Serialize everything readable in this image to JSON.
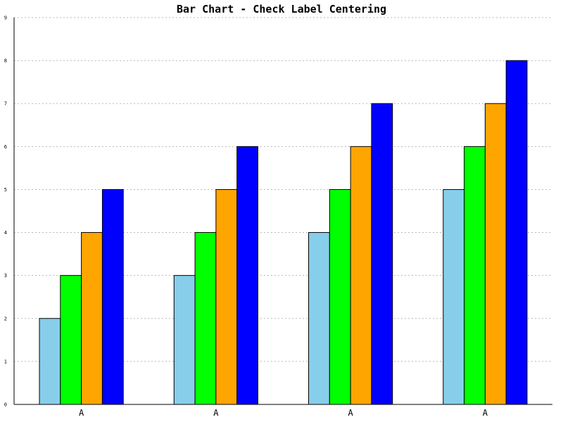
{
  "chart_data": {
    "type": "bar",
    "title": "Bar Chart - Check Label Centering",
    "xlabel": "",
    "ylabel": "",
    "categories": [
      "A",
      "A",
      "A",
      "A"
    ],
    "series": [
      {
        "color": "#87ceeb",
        "values": [
          2,
          3,
          4,
          5
        ]
      },
      {
        "color": "#00ff00",
        "values": [
          3,
          4,
          5,
          6
        ]
      },
      {
        "color": "#ffa500",
        "values": [
          4,
          5,
          6,
          7
        ]
      },
      {
        "color": "#0000ff",
        "values": [
          5,
          6,
          7,
          8
        ]
      }
    ],
    "ylim": [
      0,
      9
    ],
    "yticks": [
      "0",
      "1",
      "2",
      "3",
      "4",
      "5",
      "6",
      "7",
      "8",
      "9"
    ],
    "grid": true,
    "legend": "none"
  }
}
